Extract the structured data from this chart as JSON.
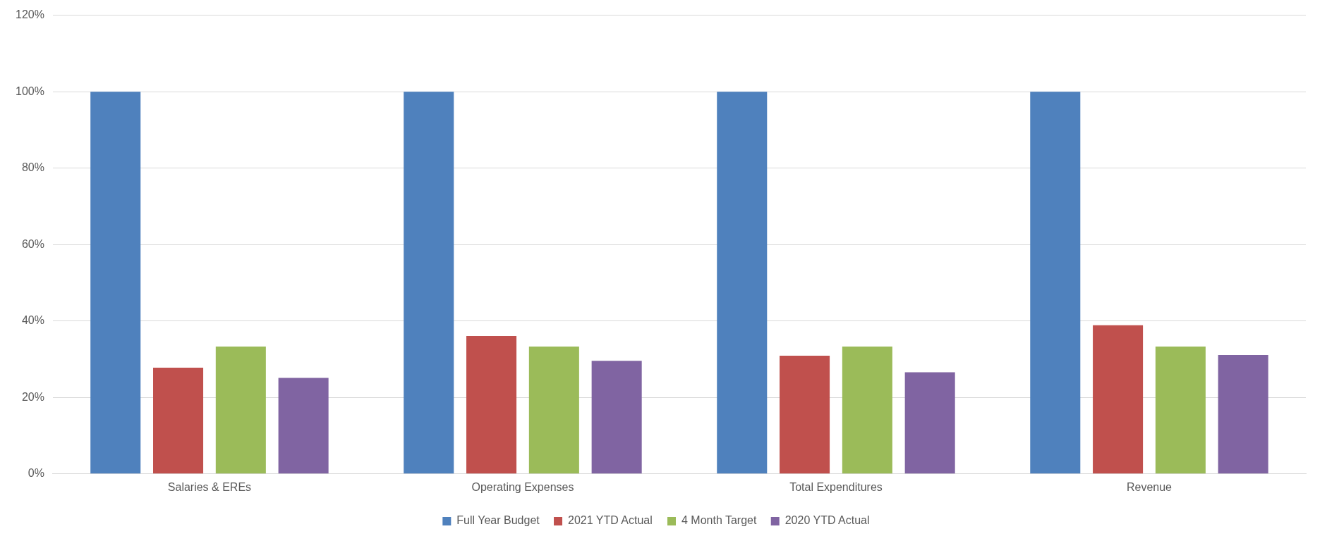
{
  "chart_data": {
    "type": "bar",
    "categories": [
      "Salaries & EREs",
      "Operating Expenses",
      "Total Expenditures",
      "Revenue"
    ],
    "series": [
      {
        "name": "Full Year Budget",
        "color": "#4f81bd",
        "values": [
          100,
          100,
          100,
          100
        ]
      },
      {
        "name": "2021 YTD Actual",
        "color": "#c0504d",
        "values": [
          27.8,
          36.1,
          30.9,
          38.9
        ]
      },
      {
        "name": "4 Month Target",
        "color": "#9bbb59",
        "values": [
          33.3,
          33.3,
          33.3,
          33.3
        ]
      },
      {
        "name": "2020 YTD Actual",
        "color": "#8064a2",
        "values": [
          25.1,
          29.6,
          26.6,
          31.1
        ]
      }
    ],
    "ylim": [
      0,
      120
    ],
    "yticks": [
      {
        "value": 0,
        "label": "0%"
      },
      {
        "value": 20,
        "label": "20%"
      },
      {
        "value": 40,
        "label": "40%"
      },
      {
        "value": 60,
        "label": "60%"
      },
      {
        "value": 80,
        "label": "80%"
      },
      {
        "value": 100,
        "label": "100%"
      },
      {
        "value": 120,
        "label": "120%"
      }
    ],
    "grid": "y",
    "legend": "bottom"
  }
}
